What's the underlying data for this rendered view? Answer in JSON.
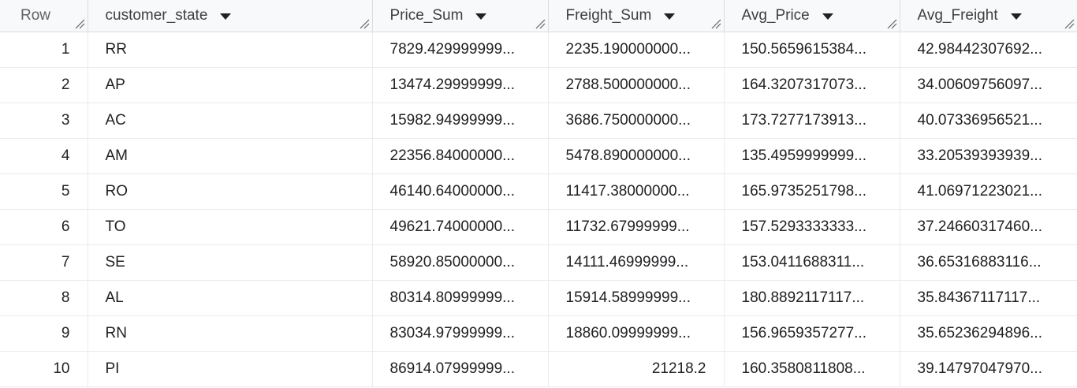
{
  "columns": [
    {
      "name": "Row"
    },
    {
      "name": "customer_state"
    },
    {
      "name": "Price_Sum"
    },
    {
      "name": "Freight_Sum"
    },
    {
      "name": "Avg_Price"
    },
    {
      "name": "Avg_Freight"
    }
  ],
  "rows": [
    {
      "row": "1",
      "customer_state": "RR",
      "price_sum": "7829.429999999...",
      "freight_sum": "2235.190000000...",
      "avg_price": "150.5659615384...",
      "avg_freight": "42.98442307692..."
    },
    {
      "row": "2",
      "customer_state": "AP",
      "price_sum": "13474.29999999...",
      "freight_sum": "2788.500000000...",
      "avg_price": "164.3207317073...",
      "avg_freight": "34.00609756097..."
    },
    {
      "row": "3",
      "customer_state": "AC",
      "price_sum": "15982.94999999...",
      "freight_sum": "3686.750000000...",
      "avg_price": "173.7277173913...",
      "avg_freight": "40.07336956521..."
    },
    {
      "row": "4",
      "customer_state": "AM",
      "price_sum": "22356.84000000...",
      "freight_sum": "5478.890000000...",
      "avg_price": "135.4959999999...",
      "avg_freight": "33.20539393939..."
    },
    {
      "row": "5",
      "customer_state": "RO",
      "price_sum": "46140.64000000...",
      "freight_sum": "11417.38000000...",
      "avg_price": "165.9735251798...",
      "avg_freight": "41.06971223021..."
    },
    {
      "row": "6",
      "customer_state": "TO",
      "price_sum": "49621.74000000...",
      "freight_sum": "11732.67999999...",
      "avg_price": "157.5293333333...",
      "avg_freight": "37.24660317460..."
    },
    {
      "row": "7",
      "customer_state": "SE",
      "price_sum": "58920.85000000...",
      "freight_sum": "14111.46999999...",
      "avg_price": "153.0411688311...",
      "avg_freight": "36.65316883116..."
    },
    {
      "row": "8",
      "customer_state": "AL",
      "price_sum": "80314.80999999...",
      "freight_sum": "15914.58999999...",
      "avg_price": "180.8892117117...",
      "avg_freight": "35.84367117117..."
    },
    {
      "row": "9",
      "customer_state": "RN",
      "price_sum": "83034.97999999...",
      "freight_sum": "18860.09999999...",
      "avg_price": "156.9659357277...",
      "avg_freight": "35.65236294896..."
    },
    {
      "row": "10",
      "customer_state": "PI",
      "price_sum": "86914.07999999...",
      "freight_sum": "21218.2",
      "avg_price": "160.3580811808...",
      "avg_freight": "39.14797047970..."
    }
  ],
  "icons": {
    "sort": "chevron-down-icon",
    "resize": "resize-handle-icon"
  },
  "colors": {
    "header_bg": "#f8f9fa",
    "border": "#dadce0",
    "text": "#202124"
  }
}
